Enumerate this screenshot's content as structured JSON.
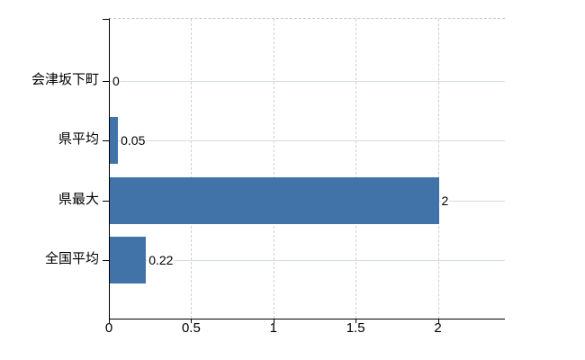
{
  "chart_data": {
    "type": "bar",
    "orientation": "horizontal",
    "title": "",
    "xlabel": "",
    "ylabel": "",
    "categories": [
      "会津坂下町",
      "県平均",
      "県最大",
      "全国平均"
    ],
    "values": [
      0,
      0.05,
      2,
      0.22
    ],
    "value_labels": [
      "0",
      "0.05",
      "2",
      "0.22"
    ],
    "x_ticks": [
      0,
      0.5,
      1,
      1.5,
      2
    ],
    "x_tick_labels": [
      "0",
      "0.5",
      "1",
      "1.5",
      "2"
    ],
    "xlim": [
      0,
      2.4
    ],
    "grid": true,
    "legend": false,
    "colors": {
      "bar": "#4273a8",
      "h_gridline": "#d6dfd6",
      "v_gridline": "#d5cdd3",
      "axis": "#000000",
      "top_border": "#d2c6c6",
      "background": "#ffffff",
      "text": "#000000"
    }
  }
}
